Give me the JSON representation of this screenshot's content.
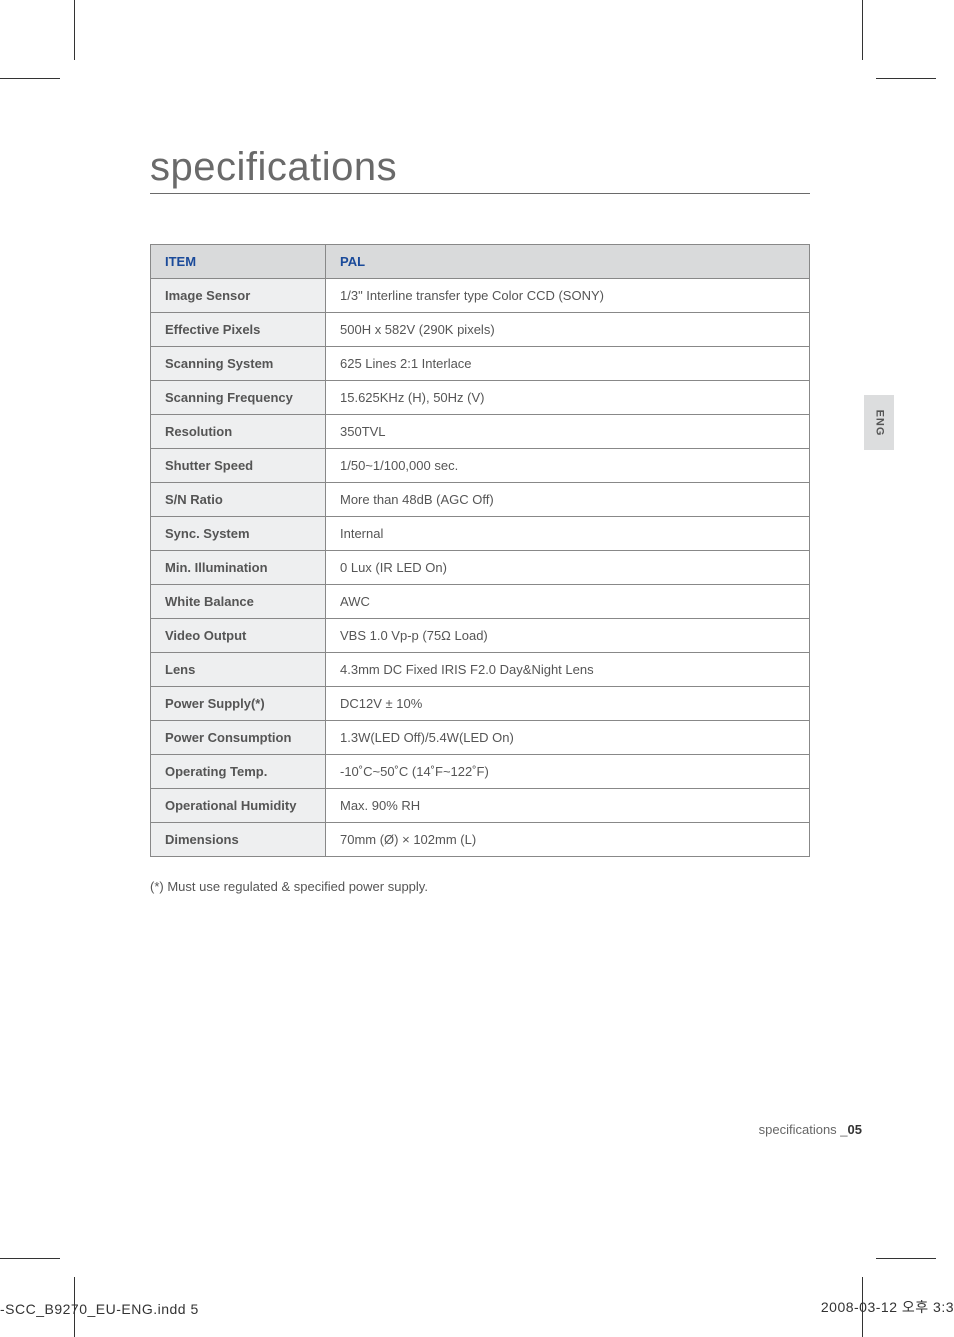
{
  "title": "specifications",
  "side_tab": "ENG",
  "table": {
    "header": {
      "item": "ITEM",
      "value": "PAL"
    },
    "rows": [
      {
        "item": "Image Sensor",
        "value": "1/3\" Interline transfer type Color CCD (SONY)"
      },
      {
        "item": "Effective Pixels",
        "value": "500H x 582V (290K pixels)"
      },
      {
        "item": "Scanning System",
        "value": "625 Lines 2:1 Interlace"
      },
      {
        "item": "Scanning Frequency",
        "value": "15.625KHz (H), 50Hz (V)"
      },
      {
        "item": "Resolution",
        "value": "350TVL"
      },
      {
        "item": "Shutter Speed",
        "value": "1/50~1/100,000 sec."
      },
      {
        "item": "S/N Ratio",
        "value": "More than 48dB (AGC Off)"
      },
      {
        "item": "Sync. System",
        "value": "Internal"
      },
      {
        "item": "Min. Illumination",
        "value": "0 Lux (IR LED On)"
      },
      {
        "item": "White Balance",
        "value": "AWC"
      },
      {
        "item": "Video Output",
        "value": "VBS 1.0 Vp-p (75Ω Load)"
      },
      {
        "item": "Lens",
        "value": "4.3mm DC Fixed IRIS F2.0 Day&Night Lens"
      },
      {
        "item": "Power Supply(*)",
        "value": "DC12V ± 10%"
      },
      {
        "item": "Power Consumption",
        "value": "1.3W(LED Off)/5.4W(LED On)"
      },
      {
        "item": "Operating Temp.",
        "value": "-10˚C~50˚C  (14˚F~122˚F)"
      },
      {
        "item": "Operational Humidity",
        "value": "Max. 90% RH"
      },
      {
        "item": "Dimensions",
        "value": "70mm (Ø) × 102mm (L)"
      }
    ]
  },
  "footnote": "(*) Must use regulated & specified power supply.",
  "footer": {
    "label": "specifications _",
    "page": "05"
  },
  "print": {
    "left": "-SCC_B9270_EU-ENG.indd   5",
    "right": "2008-03-12   오후 3:3"
  },
  "colors": {
    "header_bg": "#d9dadb",
    "header_fg": "#1a4a9a",
    "row_header_bg": "#eeeff0",
    "border": "#888",
    "outer_border": "#333",
    "text": "#555",
    "tab_bg": "#dcddde"
  }
}
